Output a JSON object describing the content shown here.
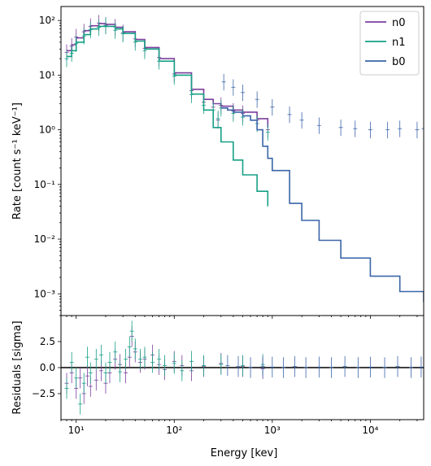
{
  "chart_data": [
    {
      "type": "line",
      "panel": "spectrum",
      "xlabel": "Energy [kev]",
      "ylabel": "Rate [count s⁻¹ keV⁻¹]",
      "xscale": "log",
      "yscale": "log",
      "xlim": [
        7,
        35000
      ],
      "ylim": [
        0.0004,
        180
      ],
      "x_ticks": [
        "10¹",
        "10²",
        "10³",
        "10⁴"
      ],
      "y_ticks": [
        "10⁻³",
        "10⁻²",
        "10⁻¹",
        "10⁰",
        "10¹",
        "10²"
      ],
      "legend_position": "top-right",
      "series": [
        {
          "name": "n0",
          "color": "#7b3f9e",
          "model_x": [
            8,
            9,
            10,
            12,
            14,
            17,
            20,
            25,
            30,
            40,
            50,
            70,
            100,
            150,
            200,
            250,
            300,
            400,
            500,
            700,
            900
          ],
          "model_y": [
            28,
            36,
            48,
            65,
            80,
            88,
            85,
            75,
            62,
            45,
            32,
            20,
            11,
            5.5,
            3.6,
            3.0,
            2.7,
            2.3,
            2.1,
            1.6,
            1.1
          ],
          "data_x": [
            8,
            9,
            10,
            12,
            14,
            17,
            20,
            25,
            30,
            40,
            50,
            70,
            100,
            150,
            200,
            250,
            280,
            300,
            400,
            500,
            700,
            900
          ],
          "data_y": [
            26,
            34,
            50,
            62,
            78,
            90,
            82,
            76,
            60,
            46,
            31,
            21,
            10.5,
            5.2,
            3.2,
            2.6,
            1.5,
            2.8,
            2.2,
            2.0,
            1.5,
            1.0
          ]
        },
        {
          "name": "n1",
          "color": "#16a085",
          "model_x": [
            8,
            9,
            10,
            12,
            14,
            17,
            20,
            25,
            30,
            40,
            50,
            70,
            100,
            150,
            200,
            250,
            300,
            400,
            500,
            700,
            900
          ],
          "model_y": [
            22,
            28,
            40,
            55,
            70,
            78,
            78,
            70,
            58,
            42,
            30,
            18,
            10,
            4.5,
            2.3,
            1.1,
            0.6,
            0.28,
            0.15,
            0.075,
            0.04
          ],
          "data_x": [
            8,
            9,
            10,
            12,
            14,
            17,
            20,
            25,
            30,
            40,
            50,
            70,
            100,
            150,
            200,
            250,
            280,
            300,
            400,
            500,
            700,
            900
          ],
          "data_y": [
            20,
            25,
            38,
            52,
            68,
            75,
            80,
            66,
            57,
            40,
            28,
            18,
            9.5,
            4.4,
            2.8,
            2.3,
            1.6,
            2.5,
            2.0,
            1.7,
            1.3,
            0.9
          ]
        },
        {
          "name": "b0",
          "color": "#3a65a8",
          "model_x": [
            300,
            350,
            400,
            500,
            600,
            700,
            800,
            900,
            1000,
            1500,
            2000,
            3000,
            5000,
            10000,
            20000,
            35000
          ],
          "model_y": [
            2.5,
            2.3,
            2.1,
            1.8,
            1.5,
            1.0,
            0.5,
            0.3,
            0.18,
            0.045,
            0.022,
            0.0095,
            0.0045,
            0.0021,
            0.0011,
            0.0007
          ],
          "data_x": [
            320,
            400,
            500,
            700,
            1000,
            1500,
            2000,
            3000,
            5000,
            7000,
            10000,
            15000,
            20000,
            30000,
            35000
          ],
          "data_y": [
            7.5,
            6.0,
            4.8,
            3.6,
            2.6,
            1.9,
            1.5,
            1.2,
            1.1,
            1.05,
            1.0,
            1.0,
            1.05,
            1.0,
            1.05
          ]
        }
      ]
    },
    {
      "type": "scatter",
      "panel": "residuals",
      "xlabel": "Energy [kev]",
      "ylabel": "Residuals [sigma]",
      "xscale": "log",
      "xlim": [
        7,
        35000
      ],
      "ylim": [
        -5,
        5
      ],
      "y_ticks": [
        "−2.5",
        "0.0",
        "2.5"
      ],
      "zero_line": 0,
      "series": [
        {
          "name": "n0",
          "color": "#7b3f9e",
          "x": [
            8,
            9,
            10,
            11,
            12,
            13,
            14,
            16,
            18,
            20,
            22,
            25,
            28,
            32,
            35,
            37,
            40,
            45,
            50,
            60,
            70,
            80,
            100,
            120,
            150,
            200,
            300,
            500,
            800
          ],
          "y": [
            -1.5,
            -0.5,
            -2.0,
            -1.0,
            -2.5,
            -0.8,
            -1.8,
            -1.2,
            -0.3,
            -1.5,
            -0.5,
            0.8,
            0.3,
            -0.5,
            1.0,
            3.0,
            1.5,
            0.5,
            0.8,
            1.2,
            0.3,
            -0.2,
            0.6,
            0.2,
            -0.3,
            0.1,
            0.4,
            0.1,
            -0.1
          ]
        },
        {
          "name": "n1",
          "color": "#16a085",
          "x": [
            8,
            9,
            10,
            11,
            12,
            13,
            14,
            16,
            18,
            20,
            22,
            25,
            28,
            32,
            35,
            37,
            40,
            45,
            50,
            60,
            70,
            80,
            100,
            120,
            150,
            200,
            300,
            500,
            800
          ],
          "y": [
            -2.0,
            0.5,
            -1.0,
            -3.5,
            -1.5,
            1.0,
            -0.5,
            0.8,
            1.2,
            -0.5,
            0.5,
            1.5,
            -0.4,
            0.8,
            2.0,
            3.5,
            1.8,
            0.8,
            1.0,
            0.5,
            0.8,
            0.2,
            0.4,
            -0.3,
            0.6,
            0.2,
            0.3,
            0.2,
            0.3
          ]
        },
        {
          "name": "b0",
          "color": "#3a65a8",
          "x": [
            350,
            450,
            600,
            800,
            1000,
            1300,
            1700,
            2200,
            3000,
            4000,
            5500,
            7500,
            10000,
            14000,
            19000,
            26000,
            33000
          ],
          "y": [
            0.2,
            0.1,
            0.0,
            0.1,
            0.05,
            0.0,
            0.1,
            0.0,
            0.05,
            0.0,
            0.1,
            0.0,
            0.05,
            0.0,
            0.1,
            0.0,
            0.05
          ]
        }
      ]
    }
  ]
}
